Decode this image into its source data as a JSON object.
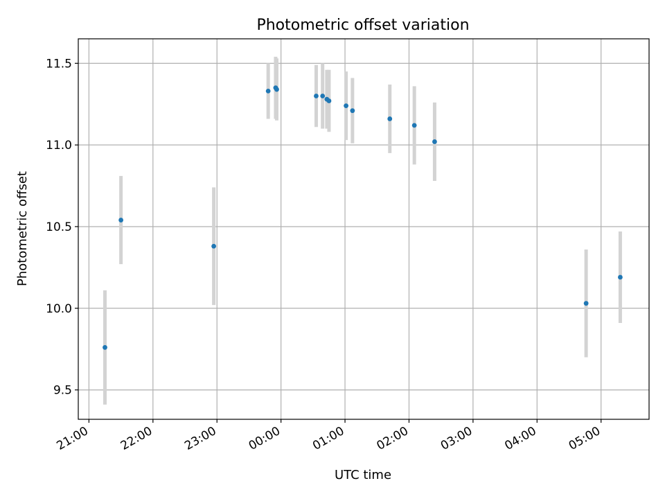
{
  "chart_data": {
    "type": "scatter",
    "title": "Photometric offset variation",
    "xlabel": "UTC time",
    "ylabel": "Photometric offset",
    "x_ticks": [
      "21:00",
      "22:00",
      "23:00",
      "00:00",
      "01:00",
      "02:00",
      "03:00",
      "04:00",
      "05:00"
    ],
    "y_ticks": [
      "9.5",
      "10.0",
      "10.5",
      "11.0",
      "11.5"
    ],
    "y_tick_values": [
      9.5,
      10.0,
      10.5,
      11.0,
      11.5
    ],
    "xlim": [
      "20:50",
      "05:45"
    ],
    "ylim": [
      9.32,
      11.65
    ],
    "grid": true,
    "marker_color": "#1f77b4",
    "errorbar_color": "#d3d3d3",
    "points": [
      {
        "x": "21:15",
        "y": 9.76,
        "err": 0.35
      },
      {
        "x": "21:30",
        "y": 10.54,
        "err": 0.27
      },
      {
        "x": "22:57",
        "y": 10.38,
        "err": 0.36
      },
      {
        "x": "23:48",
        "y": 11.33,
        "err": 0.17
      },
      {
        "x": "23:55",
        "y": 11.35,
        "err": 0.19
      },
      {
        "x": "23:56",
        "y": 11.34,
        "err": 0.19
      },
      {
        "x": "00:33",
        "y": 11.3,
        "err": 0.19
      },
      {
        "x": "00:39",
        "y": 11.3,
        "err": 0.2
      },
      {
        "x": "00:43",
        "y": 11.28,
        "err": 0.18
      },
      {
        "x": "00:45",
        "y": 11.27,
        "err": 0.19
      },
      {
        "x": "01:01",
        "y": 11.24,
        "err": 0.21
      },
      {
        "x": "01:07",
        "y": 11.21,
        "err": 0.2
      },
      {
        "x": "01:42",
        "y": 11.16,
        "err": 0.21
      },
      {
        "x": "02:05",
        "y": 11.12,
        "err": 0.24
      },
      {
        "x": "02:24",
        "y": 11.02,
        "err": 0.24
      },
      {
        "x": "04:46",
        "y": 10.03,
        "err": 0.33
      },
      {
        "x": "05:18",
        "y": 10.19,
        "err": 0.28
      }
    ]
  }
}
